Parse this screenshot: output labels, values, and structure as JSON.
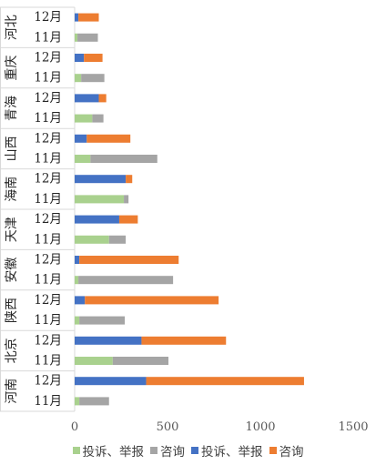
{
  "chart_data": {
    "type": "bar",
    "orientation": "horizontal",
    "stacked": true,
    "groups": [
      "河北",
      "重庆",
      "青海",
      "山西",
      "海南",
      "天津",
      "安徽",
      "陕西",
      "北京",
      "河南"
    ],
    "subcategories": [
      "12月",
      "11月"
    ],
    "series": [
      {
        "name": "投诉、举报",
        "color": "#a9d18e",
        "applies_to": "11月",
        "values": [
          15,
          35,
          95,
          85,
          265,
          185,
          20,
          25,
          205,
          25
        ]
      },
      {
        "name": "咨询",
        "color": "#a5a5a5",
        "applies_to": "11月",
        "values": [
          110,
          125,
          60,
          360,
          25,
          90,
          510,
          245,
          300,
          160
        ]
      },
      {
        "name": "投诉、举报",
        "color": "#4472c4",
        "applies_to": "12月",
        "values": [
          20,
          50,
          130,
          65,
          275,
          240,
          25,
          55,
          360,
          385
        ]
      },
      {
        "name": "咨询",
        "color": "#ed7d31",
        "applies_to": "12月",
        "values": [
          110,
          100,
          40,
          235,
          35,
          100,
          535,
          720,
          455,
          850
        ]
      }
    ],
    "xlim": [
      0,
      1500
    ],
    "xticks": [
      0,
      500,
      1000,
      1500
    ],
    "legend_position": "bottom",
    "grid": false
  }
}
